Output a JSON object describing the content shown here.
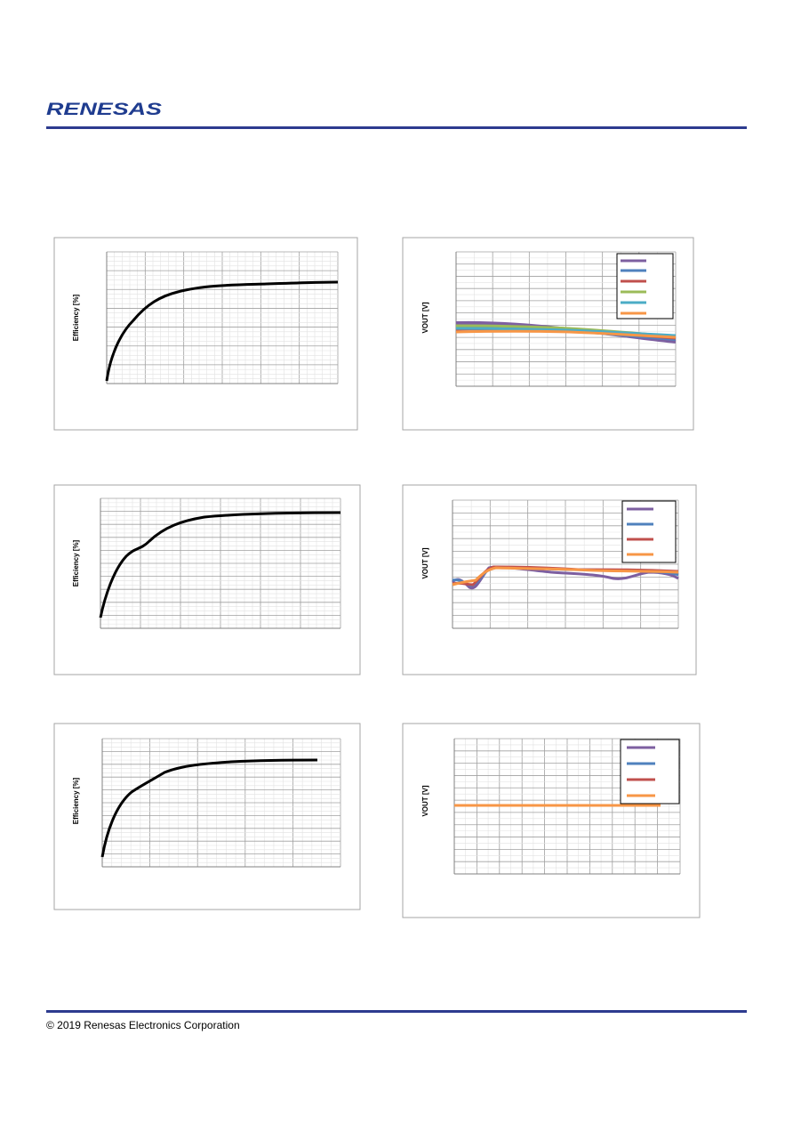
{
  "header": {
    "logo": "RENESAS"
  },
  "charts": [
    {
      "y_label": "Efficiency [%]"
    },
    {
      "y_label": "VOUT [V]"
    },
    {
      "y_label": "Efficiency [%]"
    },
    {
      "y_label": "VOUT [V]"
    },
    {
      "y_label": "Efficiency [%]"
    },
    {
      "y_label": "VOUT [V]"
    }
  ],
  "footer": {
    "copyright": "© 2019 Renesas Electronics Corporation"
  }
}
